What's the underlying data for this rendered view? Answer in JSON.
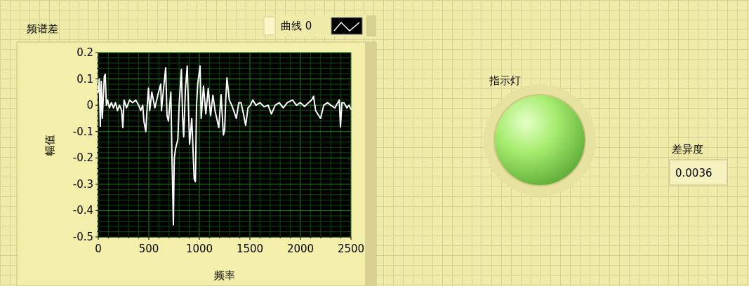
{
  "chart_data": [
    {
      "type": "line",
      "title": "频谱差",
      "xlabel": "频率",
      "ylabel": "幅值",
      "legend": "top right",
      "grid": true,
      "xlim": [
        0,
        2500
      ],
      "ylim": [
        -0.5,
        0.2
      ],
      "xticks": [
        0,
        {
          "value": 100,
          "label": null
        },
        {
          "value": 200,
          "label": null
        },
        {
          "value": 300,
          "label": null
        },
        {
          "value": 400,
          "label": null
        },
        500,
        {
          "value": 600,
          "label": null
        },
        {
          "value": 700,
          "label": null
        },
        {
          "value": 800,
          "label": null
        },
        {
          "value": 900,
          "label": null
        },
        1000,
        {
          "value": 1100,
          "label": null
        },
        {
          "value": 1200,
          "label": null
        },
        {
          "value": 1300,
          "label": null
        },
        {
          "value": 1400,
          "label": null
        },
        1500,
        {
          "value": 1600,
          "label": null
        },
        {
          "value": 1700,
          "label": null
        },
        {
          "value": 1800,
          "label": null
        },
        {
          "value": 1900,
          "label": null
        },
        2000,
        {
          "value": 2100,
          "label": null
        },
        {
          "value": 2200,
          "label": null
        },
        {
          "value": 2300,
          "label": null
        },
        {
          "value": 2400,
          "label": null
        },
        2500
      ],
      "yticks": [
        0.2,
        {
          "value": 0.18,
          "label": null
        },
        {
          "value": 0.16,
          "label": null
        },
        {
          "value": 0.14,
          "label": null
        },
        {
          "value": 0.12,
          "label": null
        },
        0.1,
        {
          "value": 0.08,
          "label": null
        },
        {
          "value": 0.06,
          "label": null
        },
        {
          "value": 0.04,
          "label": null
        },
        {
          "value": 0.02,
          "label": null
        },
        0,
        {
          "value": -0.02,
          "label": null
        },
        {
          "value": -0.04,
          "label": null
        },
        {
          "value": -0.06,
          "label": null
        },
        {
          "value": -0.08,
          "label": null
        },
        -0.1,
        {
          "value": -0.12,
          "label": null
        },
        {
          "value": -0.14,
          "label": null
        },
        {
          "value": -0.16,
          "label": null
        },
        {
          "value": -0.18,
          "label": null
        },
        -0.2,
        {
          "value": -0.22,
          "label": null
        },
        {
          "value": -0.24,
          "label": null
        },
        {
          "value": -0.26,
          "label": null
        },
        {
          "value": -0.28,
          "label": null
        },
        -0.3,
        {
          "value": -0.32,
          "label": null
        },
        {
          "value": -0.34,
          "label": null
        },
        {
          "value": -0.36,
          "label": null
        },
        {
          "value": -0.38,
          "label": null
        },
        -0.4,
        {
          "value": -0.42,
          "label": null
        },
        {
          "value": -0.44,
          "label": null
        },
        {
          "value": -0.46,
          "label": null
        },
        {
          "value": -0.48,
          "label": null
        },
        -0.5
      ],
      "series": [
        {
          "name": "曲线 0",
          "color": "#ffffff",
          "x": [
            0,
            10,
            20,
            30,
            40,
            60,
            69,
            80,
            93,
            110,
            130,
            150,
            170,
            190,
            210,
            231,
            243,
            255,
            280,
            310,
            340,
            370,
            400,
            420,
            440,
            451,
            470,
            485,
            497,
            509,
            530,
            560,
            590,
            618,
            625,
            645,
            667,
            680,
            694,
            718,
            729,
            736,
            743,
            748,
            752,
            764,
            787,
            800,
            822,
            835,
            845,
            862,
            880,
            890,
            903,
            925,
            949,
            961,
            972,
            984,
            1007,
            1018,
            1041,
            1064,
            1088,
            1111,
            1134,
            1157,
            1192,
            1215,
            1238,
            1250,
            1261,
            1273,
            1296,
            1320,
            1343,
            1366,
            1390,
            1412,
            1435,
            1458,
            1481,
            1505,
            1528,
            1560,
            1600,
            1640,
            1680,
            1713,
            1750,
            1790,
            1830,
            1870,
            1921,
            1960,
            2000,
            2040,
            2080,
            2110,
            2130,
            2150,
            2199,
            2230,
            2268,
            2300,
            2340,
            2384,
            2396,
            2410,
            2430,
            2460,
            2480,
            2500
          ],
          "values": [
            0.05,
            0.1,
            -0.08,
            0.09,
            -0.05,
            0.11,
            0.118,
            0.0,
            0.02,
            -0.01,
            0.01,
            -0.01,
            0.01,
            -0.02,
            0.0,
            -0.02,
            -0.085,
            0.02,
            -0.01,
            0.02,
            0.01,
            0.02,
            0.0,
            -0.02,
            0.0,
            -0.06,
            -0.1,
            0.0,
            0.065,
            -0.02,
            0.05,
            -0.01,
            0.04,
            0.08,
            -0.02,
            0.06,
            0.142,
            -0.04,
            -0.06,
            0.05,
            -0.2,
            -0.316,
            -0.454,
            -0.3,
            -0.2,
            -0.166,
            -0.13,
            0.0,
            0.136,
            -0.05,
            -0.12,
            0.06,
            0.149,
            0.02,
            -0.148,
            -0.05,
            -0.28,
            -0.29,
            0.0,
            0.082,
            0.149,
            -0.05,
            0.073,
            -0.033,
            0.064,
            -0.04,
            0.038,
            -0.024,
            -0.085,
            0.04,
            -0.113,
            -0.095,
            0.02,
            0.104,
            0.02,
            0.0,
            -0.024,
            -0.05,
            0.01,
            0.01,
            -0.03,
            -0.077,
            -0.01,
            0.0,
            0.02,
            0.0,
            0.01,
            -0.006,
            0.0,
            -0.033,
            0.0,
            0.01,
            -0.01,
            0.01,
            0.02,
            0.0,
            0.01,
            -0.005,
            0.01,
            0.02,
            0.034,
            -0.02,
            -0.05,
            0.0,
            0.01,
            0.0,
            -0.01,
            0.02,
            -0.082,
            0.01,
            0.01,
            -0.01,
            0.0,
            -0.015
          ]
        }
      ]
    },
    {
      "type": "other",
      "title": "指示灯",
      "annotations": [
        "差异度",
        "0.0036"
      ]
    }
  ]
}
